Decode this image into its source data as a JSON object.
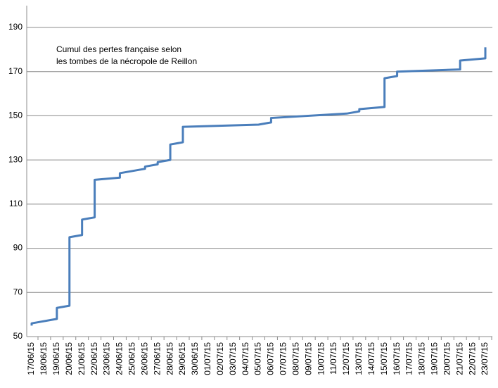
{
  "chart_data": {
    "type": "line",
    "annotation": [
      "Cumul des pertes française selon",
      "les tombes de la nécropole de Reillon"
    ],
    "categories": [
      "17/06/15",
      "18/06/15",
      "19/06/15",
      "20/06/15",
      "21/06/15",
      "22/06/15",
      "23/06/15",
      "24/06/15",
      "25/06/15",
      "26/06/15",
      "27/06/15",
      "28/06/15",
      "29/06/15",
      "30/06/15",
      "01/07/15",
      "02/07/15",
      "03/07/15",
      "04/07/15",
      "05/07/15",
      "06/07/15",
      "07/07/15",
      "08/07/15",
      "09/07/15",
      "10/07/15",
      "11/07/15",
      "12/07/15",
      "13/07/15",
      "14/07/15",
      "15/07/15",
      "16/07/15",
      "17/07/15",
      "18/07/15",
      "19/07/15",
      "20/07/15",
      "21/07/15",
      "22/07/15",
      "23/07/15"
    ],
    "x": [
      "17/06/15",
      "17/06/15",
      "19/06/15",
      "19/06/15",
      "20/06/15",
      "20/06/15",
      "21/06/15",
      "21/06/15",
      "22/06/15",
      "22/06/15",
      "24/06/15",
      "24/06/15",
      "26/06/15",
      "26/06/15",
      "27/06/15",
      "27/06/15",
      "28/06/15",
      "28/06/15",
      "29/06/15",
      "29/06/15",
      "05/07/15",
      "06/07/15",
      "06/07/15",
      "12/07/15",
      "13/07/15",
      "13/07/15",
      "15/07/15",
      "15/07/15",
      "16/07/15",
      "16/07/15",
      "21/07/15",
      "21/07/15",
      "23/07/15",
      "23/07/15"
    ],
    "values": [
      55,
      56,
      58,
      63,
      64,
      95,
      96,
      103,
      104,
      121,
      122,
      124,
      126,
      127,
      128,
      129,
      130,
      137,
      138,
      145,
      146,
      147,
      149,
      151,
      152,
      153,
      154,
      167,
      168,
      170,
      171,
      175,
      176,
      181
    ],
    "color": "#4a7ebb",
    "ylim": [
      50,
      190
    ],
    "yticks": [
      50,
      70,
      90,
      110,
      130,
      150,
      170,
      190
    ],
    "grid": true
  }
}
